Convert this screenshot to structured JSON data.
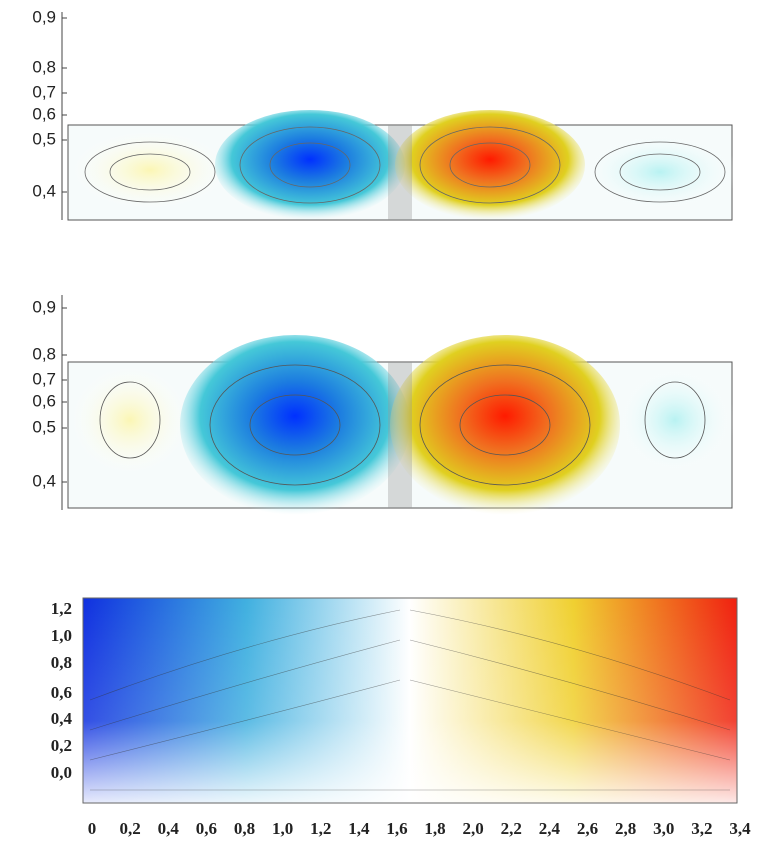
{
  "panels": [
    {
      "yticks": [
        "0,9",
        "0,8",
        "0,7",
        "0,6",
        "0,5",
        "0,4"
      ]
    },
    {
      "yticks": [
        "0,9",
        "0,8",
        "0,7",
        "0,6",
        "0,5",
        "0,4"
      ]
    },
    {
      "yticks": [
        "1,2",
        "1,0",
        "0,8",
        "0,6",
        "0,4",
        "0,2",
        "0,0"
      ],
      "xticks": [
        "0",
        "0,2",
        "0,4",
        "0,6",
        "0,8",
        "1,0",
        "1,2",
        "1,4",
        "1,6",
        "1,8",
        "2,0",
        "2,2",
        "2,4",
        "2,6",
        "2,8",
        "3,0",
        "3,2",
        "3,4"
      ]
    }
  ]
}
